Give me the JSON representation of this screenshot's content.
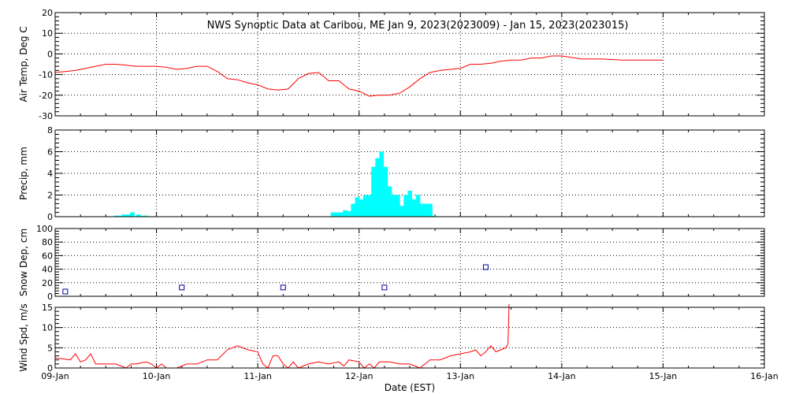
{
  "title": "NWS Synoptic Data at Caribou, ME   Jan  9, 2023(2023009) - Jan 15, 2023(2023015)",
  "xlabel": "Date (EST)",
  "colors": {
    "temp": "#ff0000",
    "precip": "#00ffff",
    "snow": "#0000a0",
    "wind": "#ff0000"
  },
  "chart_data": [
    {
      "type": "line",
      "ylabel": "Air Temp, Deg C",
      "ylim": [
        -30,
        20
      ],
      "yticks": [
        "20",
        "10",
        "0",
        "-10",
        "-20",
        "-30"
      ],
      "grid": true,
      "x_units": "days since 09-Jan",
      "series": [
        {
          "x": [
            0,
            0.1,
            0.2,
            0.3,
            0.4,
            0.5,
            0.6,
            0.7,
            0.8,
            0.9,
            1.0,
            1.1,
            1.2,
            1.3,
            1.4,
            1.5,
            1.6,
            1.7,
            1.8,
            1.9,
            2.0,
            2.1,
            2.2,
            2.3,
            2.4,
            2.5,
            2.6,
            2.7,
            2.8,
            2.9,
            3.0,
            3.1,
            3.2,
            3.3,
            3.4,
            3.5,
            3.6,
            3.7,
            3.8,
            3.9,
            4.0,
            4.1,
            4.2,
            4.3,
            4.4,
            4.5,
            4.6,
            4.7,
            4.8,
            4.9,
            5.0,
            5.2,
            5.4,
            5.6,
            5.8,
            6.0
          ],
          "values": [
            -9,
            -8.5,
            -8,
            -7,
            -6,
            -5,
            -5,
            -5.5,
            -6,
            -6,
            -6,
            -6.5,
            -7.5,
            -7,
            -6,
            -6,
            -8.5,
            -12,
            -12.5,
            -14,
            -15,
            -17,
            -17.5,
            -17,
            -12,
            -9.5,
            -9,
            -13,
            -13,
            -17,
            -18,
            -20.5,
            -20,
            -20,
            -19,
            -16,
            -12,
            -9,
            -8,
            -7.5,
            -7,
            -5,
            -5,
            -4.5,
            -3.5,
            -3,
            -3,
            -2,
            -2,
            -1,
            -1,
            -2.5,
            -2.5,
            -3,
            -3,
            -3
          ]
        }
      ]
    },
    {
      "type": "bar",
      "ylabel": "Precip, mm",
      "ylim": [
        0,
        8
      ],
      "yticks": [
        "8",
        "6",
        "4",
        "2",
        "0"
      ],
      "grid": true,
      "x_units": "days since 09-Jan",
      "bar_width_days": 0.04,
      "x": [
        0.58,
        0.62,
        0.66,
        0.7,
        0.74,
        0.8,
        0.84,
        0.88,
        2.72,
        2.76,
        2.8,
        2.84,
        2.88,
        2.92,
        2.96,
        3.0,
        3.04,
        3.08,
        3.12,
        3.16,
        3.2,
        3.24,
        3.28,
        3.32,
        3.36,
        3.4,
        3.44,
        3.48,
        3.52,
        3.56,
        3.6,
        3.64,
        3.68,
        3.72
      ],
      "values": [
        0.1,
        0.1,
        0.2,
        0.2,
        0.4,
        0.2,
        0.1,
        0.1,
        0.4,
        0.4,
        0.4,
        0.6,
        0.5,
        1.2,
        1.8,
        1.6,
        2.0,
        2.0,
        4.6,
        5.4,
        6.0,
        4.6,
        2.8,
        2.0,
        2.0,
        1.0,
        2.0,
        2.4,
        1.6,
        2.0,
        1.2,
        1.2,
        1.2,
        0.1
      ]
    },
    {
      "type": "scatter",
      "ylabel": "Snow Dep, cm",
      "ylim": [
        0,
        100
      ],
      "yticks": [
        "100",
        "80",
        "60",
        "40",
        "20",
        "0"
      ],
      "grid": true,
      "x_units": "days since 09-Jan",
      "series": [
        {
          "x": [
            0.1,
            1.25,
            2.25,
            3.25,
            4.25
          ],
          "values": [
            7,
            13,
            13,
            13,
            43
          ]
        }
      ]
    },
    {
      "type": "line",
      "ylabel": "Wind Spd, m/s",
      "ylim": [
        0,
        15
      ],
      "yticks": [
        "15",
        "10",
        "5",
        "0"
      ],
      "grid": true,
      "x_units": "days since 09-Jan",
      "series": [
        {
          "x": [
            0,
            0.1,
            0.15,
            0.2,
            0.25,
            0.3,
            0.35,
            0.4,
            0.5,
            0.6,
            0.7,
            0.75,
            0.8,
            0.9,
            0.95,
            1.0,
            1.05,
            1.1,
            1.2,
            1.3,
            1.4,
            1.5,
            1.6,
            1.7,
            1.8,
            1.9,
            2.0,
            2.05,
            2.1,
            2.15,
            2.2,
            2.25,
            2.3,
            2.35,
            2.4,
            2.5,
            2.6,
            2.7,
            2.8,
            2.85,
            2.9,
            3.0,
            3.05,
            3.1,
            3.15,
            3.2,
            3.3,
            3.4,
            3.5,
            3.6,
            3.7,
            3.8,
            3.9,
            4.0,
            4.1,
            4.15,
            4.2,
            4.25,
            4.3,
            4.35,
            4.4,
            4.45
          ],
          "values": [
            2.5,
            2.2,
            2,
            3.5,
            1.5,
            2,
            3.5,
            1,
            1,
            1,
            0,
            1,
            1,
            1.5,
            1,
            0,
            1,
            0,
            0,
            1,
            1,
            2,
            2,
            4.5,
            5.5,
            4.5,
            4,
            1,
            0,
            3,
            3,
            1,
            0,
            1.5,
            0,
            1,
            1.5,
            1,
            1.5,
            0.5,
            2,
            1.5,
            0,
            1,
            0,
            1.5,
            1.5,
            1,
            1,
            0,
            2,
            2,
            3,
            3.5,
            4,
            4.5,
            3,
            4,
            5.5,
            4,
            4.5,
            5
          ]
        }
      ]
    }
  ],
  "xaxis": {
    "tick_labels": [
      "09-Jan",
      "10-Jan",
      "11-Jan",
      "12-Jan",
      "13-Jan",
      "14-Jan",
      "15-Jan",
      "16-Jan"
    ],
    "xlim": [
      0,
      7
    ]
  }
}
